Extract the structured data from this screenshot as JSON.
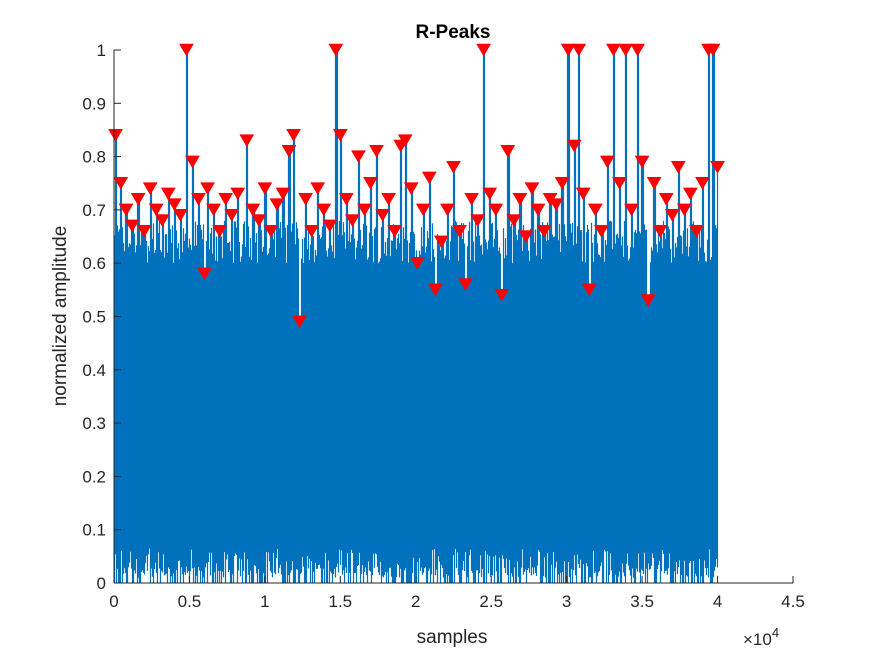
{
  "chart_data": {
    "type": "line",
    "title": "R-Peaks",
    "xlabel": "samples",
    "ylabel": "normalized amplitude",
    "x_exponent_label": "×10",
    "x_exponent_power": "4",
    "xlim": [
      0,
      45000
    ],
    "ylim": [
      0,
      1
    ],
    "x_ticks": [
      0,
      5000,
      10000,
      15000,
      20000,
      25000,
      30000,
      35000,
      40000,
      45000
    ],
    "x_tick_labels": [
      "0",
      "0.5",
      "1",
      "1.5",
      "2",
      "2.5",
      "3",
      "3.5",
      "4",
      "4.5"
    ],
    "y_ticks": [
      0,
      0.1,
      0.2,
      0.3,
      0.4,
      0.5,
      0.6,
      0.7,
      0.8,
      0.9,
      1
    ],
    "y_tick_labels": [
      "0",
      "0.1",
      "0.2",
      "0.3",
      "0.4",
      "0.5",
      "0.6",
      "0.7",
      "0.8",
      "0.9",
      "1"
    ],
    "grid": false,
    "signal_length": 40000,
    "signal_color": "#0072BD",
    "peak_color": "#FF0000",
    "series": [
      {
        "kind": "signal",
        "description": "ECG signal, dense oscillation 0 to ~0.7 over 40000 samples"
      },
      {
        "kind": "peaks",
        "marker": "triangle-down",
        "x": [
          100,
          450,
          800,
          1200,
          1600,
          2000,
          2400,
          2800,
          3200,
          3600,
          4000,
          4400,
          4800,
          5200,
          5600,
          6000,
          6200,
          6600,
          7000,
          7400,
          7800,
          8200,
          8800,
          9200,
          9600,
          10000,
          10400,
          10800,
          11200,
          11600,
          11900,
          12300,
          12700,
          13100,
          13500,
          13900,
          14300,
          14700,
          15000,
          15400,
          15800,
          16200,
          16600,
          17000,
          17400,
          17800,
          18200,
          18600,
          19000,
          19300,
          19700,
          20100,
          20500,
          20900,
          21300,
          21700,
          22100,
          22500,
          22900,
          23300,
          23700,
          24100,
          24500,
          24900,
          25300,
          25700,
          26100,
          26500,
          26900,
          27300,
          27700,
          28100,
          28500,
          28900,
          29300,
          29700,
          30100,
          30500,
          30800,
          31100,
          31500,
          31900,
          32300,
          32700,
          33100,
          33500,
          33900,
          34300,
          34700,
          35000,
          35400,
          35800,
          36200,
          36600,
          37000,
          37400,
          37800,
          38200,
          38600,
          39000,
          39400,
          39700,
          40000
        ],
        "y": [
          0.84,
          0.75,
          0.7,
          0.67,
          0.72,
          0.66,
          0.74,
          0.7,
          0.68,
          0.73,
          0.71,
          0.69,
          1.0,
          0.79,
          0.72,
          0.58,
          0.74,
          0.7,
          0.66,
          0.72,
          0.69,
          0.73,
          0.83,
          0.7,
          0.68,
          0.74,
          0.66,
          0.71,
          0.73,
          0.81,
          0.84,
          0.49,
          0.72,
          0.66,
          0.74,
          0.7,
          0.67,
          1.0,
          0.84,
          0.72,
          0.68,
          0.8,
          0.7,
          0.75,
          0.81,
          0.69,
          0.72,
          0.66,
          0.82,
          0.83,
          0.74,
          0.6,
          0.7,
          0.76,
          0.55,
          0.64,
          0.7,
          0.78,
          0.66,
          0.56,
          0.72,
          0.68,
          1.0,
          0.73,
          0.7,
          0.54,
          0.81,
          0.68,
          0.72,
          0.65,
          0.74,
          0.7,
          0.66,
          0.72,
          0.71,
          0.75,
          1.0,
          0.82,
          1.0,
          0.73,
          0.55,
          0.7,
          0.66,
          0.79,
          1.0,
          0.75,
          1.0,
          0.7,
          1.0,
          0.79,
          0.53,
          0.75,
          0.66,
          0.72,
          0.69,
          0.78,
          0.7,
          0.73,
          0.66,
          0.75,
          1.0,
          1.0,
          0.78
        ]
      }
    ]
  }
}
